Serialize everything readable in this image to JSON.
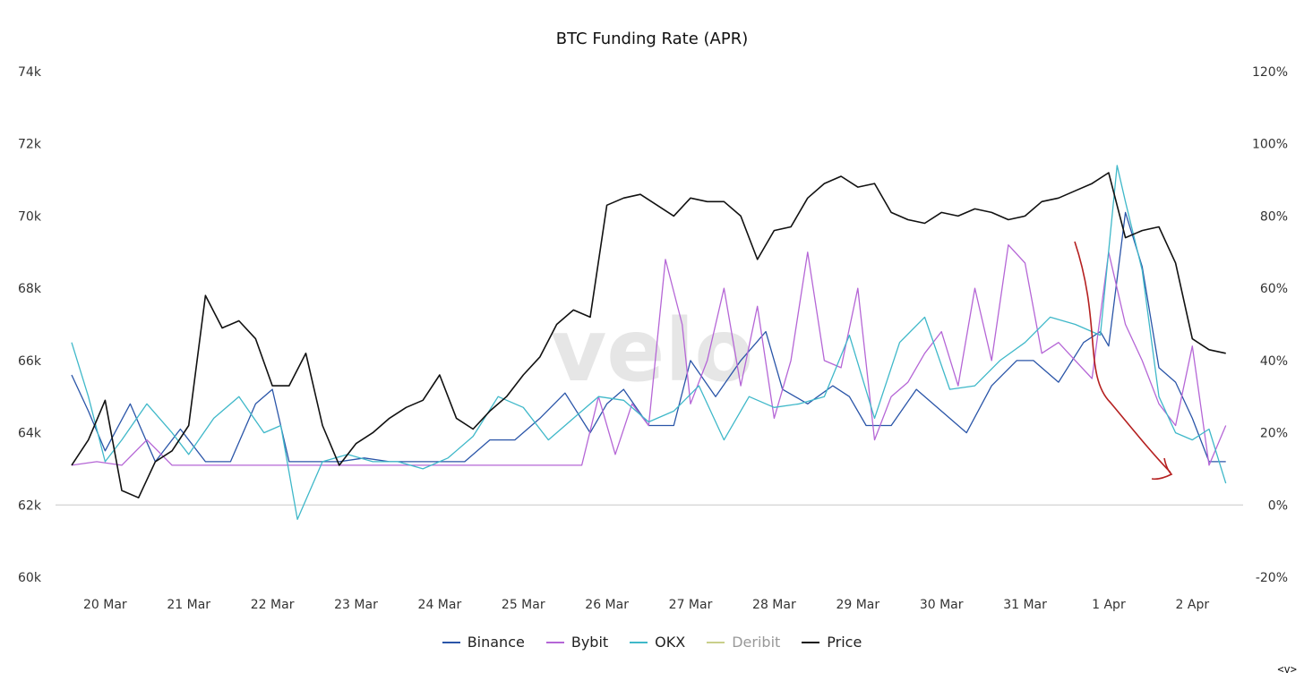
{
  "chart_data": {
    "type": "line",
    "title": "BTC Funding Rate (APR)",
    "categories": [
      "20 Mar",
      "21 Mar",
      "22 Mar",
      "23 Mar",
      "24 Mar",
      "25 Mar",
      "26 Mar",
      "27 Mar",
      "28 Mar",
      "29 Mar",
      "30 Mar",
      "31 Mar",
      "1 Apr",
      "2 Apr"
    ],
    "left_axis": {
      "ticks": [
        "74k",
        "72k",
        "70k",
        "68k",
        "66k",
        "64k",
        "62k",
        "60k"
      ],
      "ylim": [
        60000,
        74000
      ],
      "unit": "USD"
    },
    "right_axis": {
      "ticks": [
        "120%",
        "100%",
        "80%",
        "60%",
        "40%",
        "20%",
        "0%",
        "-20%"
      ],
      "ylim": [
        -20,
        120
      ],
      "unit": "%"
    },
    "x_range": [
      19.6,
      33.5
    ],
    "series": [
      {
        "name": "Binance",
        "axis": "right",
        "color": "#2a55a8",
        "x": [
          19.6,
          19.8,
          20.0,
          20.3,
          20.6,
          20.9,
          21.2,
          21.5,
          21.8,
          22.0,
          22.2,
          22.5,
          22.8,
          23.1,
          23.4,
          23.7,
          24.0,
          24.3,
          24.6,
          24.9,
          25.2,
          25.5,
          25.8,
          26.0,
          26.2,
          26.5,
          26.8,
          27.0,
          27.3,
          27.6,
          27.9,
          28.1,
          28.4,
          28.7,
          28.9,
          29.1,
          29.4,
          29.7,
          30.0,
          30.3,
          30.6,
          30.9,
          31.1,
          31.4,
          31.7,
          31.9,
          32.0,
          32.2,
          32.4,
          32.6,
          32.8,
          33.0,
          33.2,
          33.4
        ],
        "y": [
          36,
          26,
          15,
          28,
          12,
          21,
          12,
          12,
          28,
          32,
          12,
          12,
          12,
          13,
          12,
          12,
          12,
          12,
          18,
          18,
          24,
          31,
          20,
          28,
          32,
          22,
          22,
          40,
          30,
          40,
          48,
          32,
          28,
          33,
          30,
          22,
          22,
          32,
          26,
          20,
          33,
          40,
          40,
          34,
          45,
          48,
          44,
          81,
          66,
          38,
          34,
          24,
          12,
          12
        ]
      },
      {
        "name": "Bybit",
        "axis": "right",
        "color": "#b566d6",
        "x": [
          19.6,
          19.9,
          20.2,
          20.5,
          20.8,
          21.0,
          21.3,
          21.6,
          21.9,
          22.2,
          22.5,
          22.8,
          23.1,
          23.4,
          23.7,
          24.0,
          24.3,
          24.6,
          24.9,
          25.2,
          25.5,
          25.7,
          25.9,
          26.1,
          26.3,
          26.5,
          26.7,
          26.9,
          27.0,
          27.2,
          27.4,
          27.6,
          27.8,
          28.0,
          28.2,
          28.4,
          28.6,
          28.8,
          29.0,
          29.2,
          29.4,
          29.6,
          29.8,
          30.0,
          30.2,
          30.4,
          30.6,
          30.8,
          31.0,
          31.2,
          31.4,
          31.6,
          31.8,
          32.0,
          32.2,
          32.4,
          32.6,
          32.8,
          33.0,
          33.2,
          33.4
        ],
        "y": [
          11,
          12,
          11,
          18,
          11,
          11,
          11,
          11,
          11,
          11,
          11,
          11,
          11,
          11,
          11,
          11,
          11,
          11,
          11,
          11,
          11,
          11,
          30,
          14,
          28,
          22,
          68,
          50,
          28,
          40,
          60,
          33,
          55,
          24,
          40,
          70,
          40,
          38,
          60,
          18,
          30,
          34,
          42,
          48,
          33,
          60,
          40,
          72,
          67,
          42,
          45,
          40,
          35,
          70,
          50,
          40,
          28,
          22,
          44,
          11,
          22
        ]
      },
      {
        "name": "OKX",
        "axis": "right",
        "color": "#3fb8c9",
        "x": [
          19.6,
          19.8,
          20.0,
          20.2,
          20.5,
          20.8,
          21.0,
          21.3,
          21.6,
          21.9,
          22.1,
          22.3,
          22.6,
          22.9,
          23.2,
          23.5,
          23.8,
          24.1,
          24.4,
          24.7,
          25.0,
          25.3,
          25.6,
          25.9,
          26.2,
          26.5,
          26.8,
          27.1,
          27.4,
          27.7,
          28.0,
          28.3,
          28.6,
          28.9,
          29.2,
          29.5,
          29.8,
          30.1,
          30.4,
          30.7,
          31.0,
          31.3,
          31.6,
          31.9,
          32.1,
          32.2,
          32.4,
          32.6,
          32.8,
          33.0,
          33.2,
          33.4
        ],
        "y": [
          45,
          30,
          12,
          18,
          28,
          20,
          14,
          24,
          30,
          20,
          22,
          -4,
          12,
          14,
          12,
          12,
          10,
          13,
          19,
          30,
          27,
          18,
          24,
          30,
          29,
          23,
          26,
          33,
          18,
          30,
          27,
          28,
          30,
          47,
          24,
          45,
          52,
          32,
          33,
          40,
          45,
          52,
          50,
          47,
          94,
          84,
          65,
          30,
          20,
          18,
          21,
          6
        ]
      },
      {
        "name": "Deribit",
        "axis": "right",
        "color": "#c9cf8a",
        "muted": true,
        "x": [],
        "y": []
      },
      {
        "name": "Price",
        "axis": "left",
        "color": "#111111",
        "x": [
          19.6,
          19.8,
          20.0,
          20.2,
          20.4,
          20.6,
          20.8,
          21.0,
          21.2,
          21.4,
          21.6,
          21.8,
          22.0,
          22.2,
          22.4,
          22.6,
          22.8,
          23.0,
          23.2,
          23.4,
          23.6,
          23.8,
          24.0,
          24.2,
          24.4,
          24.6,
          24.8,
          25.0,
          25.2,
          25.4,
          25.6,
          25.8,
          26.0,
          26.2,
          26.4,
          26.6,
          26.8,
          27.0,
          27.2,
          27.4,
          27.6,
          27.8,
          28.0,
          28.2,
          28.4,
          28.6,
          28.8,
          29.0,
          29.2,
          29.4,
          29.6,
          29.8,
          30.0,
          30.2,
          30.4,
          30.6,
          30.8,
          31.0,
          31.2,
          31.4,
          31.6,
          31.8,
          32.0,
          32.2,
          32.4,
          32.6,
          32.8,
          33.0,
          33.2,
          33.4
        ],
        "y": [
          63100,
          63800,
          64900,
          62400,
          62200,
          63200,
          63500,
          64200,
          67800,
          66900,
          67100,
          66600,
          65300,
          65300,
          66200,
          64200,
          63100,
          63700,
          64000,
          64400,
          64700,
          64900,
          65600,
          64400,
          64100,
          64600,
          65000,
          65600,
          66100,
          67000,
          67400,
          67200,
          70300,
          70500,
          70600,
          70300,
          70000,
          70500,
          70400,
          70400,
          70000,
          68800,
          69600,
          69700,
          70500,
          70900,
          71100,
          70800,
          70900,
          70100,
          69900,
          69800,
          70100,
          70000,
          70200,
          70100,
          69900,
          70000,
          70400,
          70500,
          70700,
          70900,
          71200,
          69400,
          69600,
          69700,
          68700,
          66600,
          66300,
          66200
        ]
      }
    ],
    "annotation": {
      "type": "hand-drawn-arrow",
      "color": "#b52020"
    },
    "watermark": "velo",
    "legend_position": "bottom-center",
    "grid": false
  },
  "nav_glyph": "<v>"
}
